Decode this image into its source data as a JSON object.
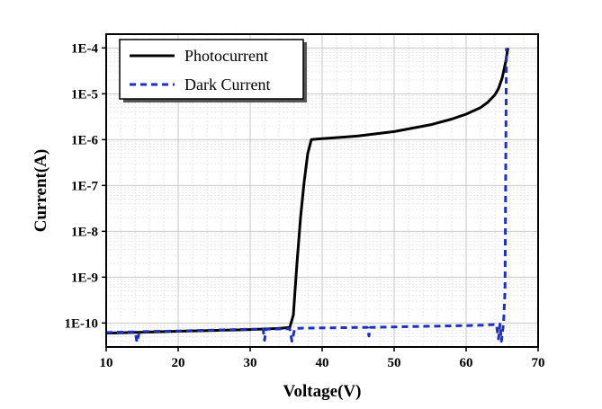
{
  "chart_data": {
    "type": "line",
    "title": "",
    "xlabel": "Voltage(V)",
    "ylabel": "Current(A)",
    "xlim": [
      10,
      70
    ],
    "ylim": [
      3e-11,
      0.0002
    ],
    "y_scale": "log",
    "grid": true,
    "minor_grid": true,
    "legend_position": "top-left",
    "x_ticks": [
      10,
      20,
      30,
      40,
      50,
      60,
      70
    ],
    "x_tick_labels": [
      "10",
      "20",
      "30",
      "40",
      "50",
      "60",
      "70"
    ],
    "y_ticks": [
      1e-10,
      1e-09,
      1e-08,
      1e-07,
      1e-06,
      1e-05,
      0.0001
    ],
    "y_tick_labels": [
      "1E-10",
      "1E-9",
      "1E-8",
      "1E-7",
      "1E-6",
      "1E-5",
      "1E-4"
    ],
    "series": [
      {
        "name": "Photocurrent",
        "color": "#000000",
        "style": "solid",
        "x": [
          10,
          15,
          20,
          25,
          30,
          34,
          35.5,
          36,
          36.5,
          37,
          37.5,
          38,
          38.5,
          40,
          45,
          50,
          55,
          58,
          60,
          62,
          63,
          64,
          64.5,
          65,
          65.5,
          65.8
        ],
        "y": [
          6e-11,
          6.3e-11,
          6.6e-11,
          6.9e-11,
          7.2e-11,
          7.6e-11,
          8e-11,
          1.5e-10,
          2e-09,
          2e-08,
          1.2e-07,
          5e-07,
          1e-06,
          1.05e-06,
          1.2e-06,
          1.5e-06,
          2.1e-06,
          2.8e-06,
          3.6e-06,
          5e-06,
          6.5e-06,
          9.5e-06,
          1.3e-05,
          2.2e-05,
          5e-05,
          0.0001
        ]
      },
      {
        "name": "Dark Current",
        "color": "#1f2fbf",
        "style": "dashed",
        "x": [
          10,
          14,
          14.3,
          14.6,
          15,
          20,
          25,
          30,
          31.8,
          32,
          32.2,
          35,
          35.5,
          35.8,
          36.2,
          37,
          40,
          45,
          46.3,
          46.5,
          46.7,
          50,
          55,
          60,
          62.5,
          63.5,
          64.2,
          64.5,
          64.7,
          64.9,
          65.2,
          65.4,
          65.6
        ],
        "y": [
          6.2e-11,
          6.4e-11,
          3.8e-11,
          6.4e-11,
          6.5e-11,
          6.7e-11,
          7e-11,
          7.3e-11,
          7.3e-11,
          4.2e-11,
          7.3e-11,
          7.5e-11,
          7.5e-11,
          4e-11,
          7.6e-11,
          7.7e-11,
          7.8e-11,
          8e-11,
          8e-11,
          5.2e-11,
          8e-11,
          8.2e-11,
          8.5e-11,
          8.8e-11,
          9e-11,
          9.2e-11,
          9.3e-11,
          4.5e-11,
          9.5e-11,
          4e-11,
          1e-10,
          5e-10,
          0.0001
        ]
      }
    ]
  }
}
